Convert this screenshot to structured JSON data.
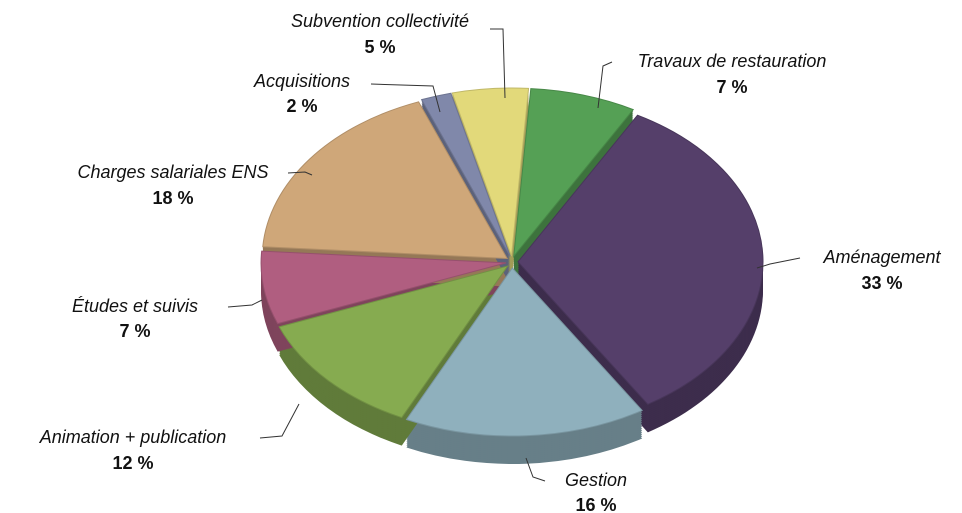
{
  "chart_data": {
    "type": "pie",
    "categories": [
      "Subvention collectivité",
      "Travaux de restauration",
      "Aménagement",
      "Gestion",
      "Animation + publication",
      "Études et suivis",
      "Charges salariales ENS",
      "Acquisitions"
    ],
    "values": [
      5,
      7,
      33,
      16,
      12,
      7,
      18,
      2
    ],
    "value_labels": [
      "5 %",
      "7 %",
      "33 %",
      "16 %",
      "12 %",
      "7 %",
      "18 %",
      "2 %"
    ],
    "colors": [
      "#e2d97a",
      "#55a055",
      "#553f6a",
      "#8fb0bd",
      "#86ab50",
      "#b05e80",
      "#cfa779",
      "#8088aa"
    ]
  }
}
